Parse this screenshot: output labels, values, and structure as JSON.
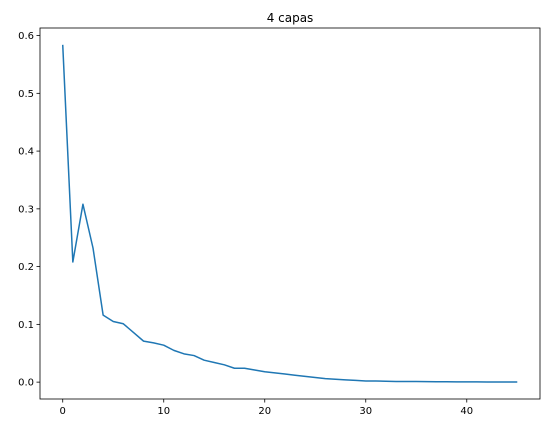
{
  "chart_data": {
    "type": "line",
    "title": "4 capas",
    "xlabel": "",
    "ylabel": "",
    "xlim": [
      -2.25,
      47.25
    ],
    "ylim": [
      -0.0292,
      0.6131
    ],
    "x_ticks": [
      0,
      10,
      20,
      30,
      40
    ],
    "x_tick_labels": [
      "0",
      "10",
      "20",
      "30",
      "40"
    ],
    "y_ticks": [
      0.0,
      0.1,
      0.2,
      0.3,
      0.4,
      0.5,
      0.6
    ],
    "y_tick_labels": [
      "0.0",
      "0.1",
      "0.2",
      "0.3",
      "0.4",
      "0.5",
      "0.6"
    ],
    "grid": false,
    "line_color": "#1f77b4",
    "series": [
      {
        "x": [
          0,
          1,
          2,
          3,
          4,
          5,
          6,
          7,
          8,
          9,
          10,
          11,
          12,
          13,
          14,
          15,
          16,
          17,
          18,
          19,
          20,
          21,
          22,
          23,
          24,
          25,
          26,
          27,
          28,
          29,
          30,
          31,
          32,
          33,
          34,
          35,
          36,
          37,
          38,
          39,
          40,
          41,
          42,
          43,
          44,
          45
        ],
        "values": [
          0.584,
          0.208,
          0.308,
          0.232,
          0.116,
          0.105,
          0.101,
          0.086,
          0.071,
          0.068,
          0.064,
          0.055,
          0.049,
          0.046,
          0.038,
          0.034,
          0.03,
          0.024,
          0.024,
          0.021,
          0.018,
          0.016,
          0.014,
          0.012,
          0.01,
          0.008,
          0.006,
          0.005,
          0.004,
          0.003,
          0.002,
          0.002,
          0.0015,
          0.0012,
          0.001,
          0.001,
          0.0008,
          0.0007,
          0.0006,
          0.0005,
          0.0004,
          0.0004,
          0.0003,
          0.0003,
          0.0003,
          0.0003
        ]
      }
    ]
  }
}
